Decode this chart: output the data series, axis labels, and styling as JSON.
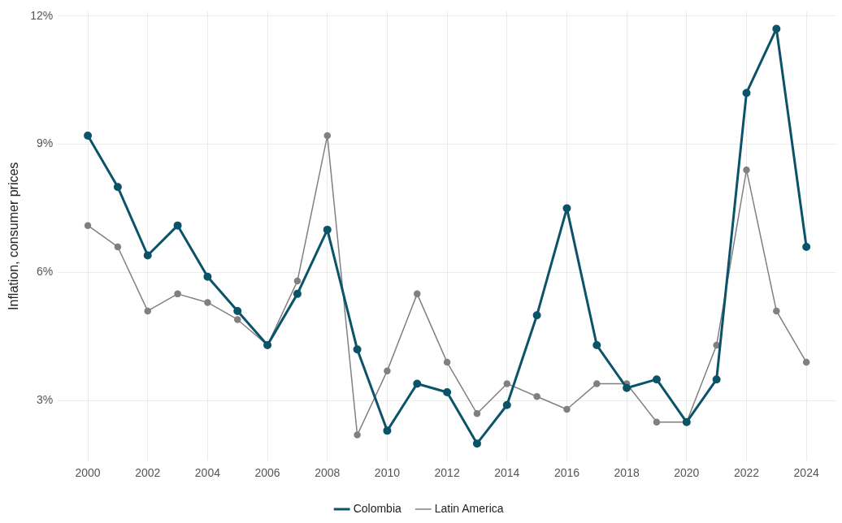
{
  "chart_data": {
    "type": "line",
    "ylabel": "Inflation, consumer prices",
    "x": [
      2000,
      2001,
      2002,
      2003,
      2004,
      2005,
      2006,
      2007,
      2008,
      2009,
      2010,
      2011,
      2012,
      2013,
      2014,
      2015,
      2016,
      2017,
      2018,
      2019,
      2020,
      2021,
      2022,
      2023,
      2024
    ],
    "series": [
      {
        "name": "Colombia",
        "color": "#0b5368",
        "values": [
          9.2,
          8.0,
          6.4,
          7.1,
          5.9,
          5.1,
          4.3,
          5.5,
          7.0,
          4.2,
          2.3,
          3.4,
          3.2,
          2.0,
          2.9,
          5.0,
          7.5,
          4.3,
          3.3,
          3.5,
          2.5,
          3.5,
          10.2,
          11.7,
          6.6
        ]
      },
      {
        "name": "Latin America",
        "color": "#808080",
        "values": [
          7.1,
          6.6,
          5.1,
          5.5,
          5.3,
          4.9,
          4.3,
          5.8,
          9.2,
          2.2,
          3.7,
          5.5,
          3.9,
          2.7,
          3.4,
          3.1,
          2.8,
          3.4,
          3.4,
          2.5,
          2.5,
          4.3,
          8.4,
          5.1,
          3.9
        ]
      }
    ],
    "xlim": [
      1999,
      2025
    ],
    "xticks": [
      2000,
      2002,
      2004,
      2006,
      2008,
      2010,
      2012,
      2014,
      2016,
      2018,
      2020,
      2022,
      2024
    ],
    "ylim": [
      1.6,
      12.1
    ],
    "yticks": [
      {
        "value": 3,
        "label": "3%"
      },
      {
        "value": 6,
        "label": "6%"
      },
      {
        "value": 9,
        "label": "9%"
      },
      {
        "value": 12,
        "label": "12%"
      }
    ],
    "grid": true,
    "legend": "bottom",
    "marker": "circle",
    "line_style": "solid"
  }
}
